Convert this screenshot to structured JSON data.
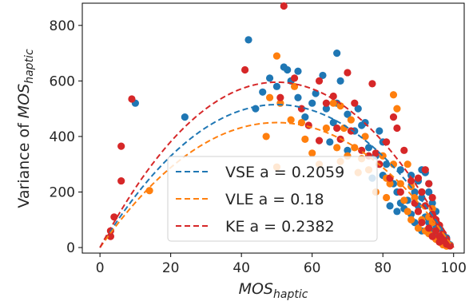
{
  "chart_data": {
    "type": "scatter",
    "xlabel": {
      "base": "MOS",
      "sub": "haptic"
    },
    "ylabel": {
      "prefix": "Variance of ",
      "base": "MOS",
      "sub": "haptic"
    },
    "xlim": [
      -5,
      103
    ],
    "ylim": [
      -20,
      880
    ],
    "xticks": [
      0,
      20,
      40,
      60,
      80,
      100
    ],
    "yticks": [
      0,
      200,
      400,
      600,
      800
    ],
    "grid": false,
    "legend_position": "lower-center",
    "series": [
      {
        "name": "VSE",
        "legend_label": "VSE a = 0.2059",
        "a": 0.2059,
        "color": "#1f77b4",
        "points": [
          [
            10,
            520
          ],
          [
            24,
            470
          ],
          [
            42,
            748
          ],
          [
            44,
            500
          ],
          [
            46,
            560
          ],
          [
            48,
            610
          ],
          [
            50,
            580
          ],
          [
            52,
            650
          ],
          [
            53,
            640
          ],
          [
            54,
            600
          ],
          [
            56,
            540
          ],
          [
            56,
            635
          ],
          [
            58,
            470
          ],
          [
            60,
            520
          ],
          [
            61,
            555
          ],
          [
            63,
            620
          ],
          [
            64,
            500
          ],
          [
            65,
            380
          ],
          [
            66,
            450
          ],
          [
            67,
            700
          ],
          [
            67,
            520
          ],
          [
            68,
            600
          ],
          [
            70,
            480
          ],
          [
            70,
            350
          ],
          [
            72,
            420
          ],
          [
            73,
            500
          ],
          [
            74,
            440
          ],
          [
            75,
            450
          ],
          [
            76,
            360
          ],
          [
            77,
            250
          ],
          [
            78,
            330
          ],
          [
            79,
            420
          ],
          [
            80,
            380
          ],
          [
            80,
            260
          ],
          [
            81,
            300
          ],
          [
            82,
            150
          ],
          [
            83,
            230
          ],
          [
            84,
            200
          ],
          [
            84,
            130
          ],
          [
            85,
            280
          ],
          [
            85,
            160
          ],
          [
            86,
            140
          ],
          [
            87,
            170
          ],
          [
            88,
            120
          ],
          [
            88,
            260
          ],
          [
            89,
            200
          ],
          [
            89,
            90
          ],
          [
            90,
            240
          ],
          [
            90,
            150
          ],
          [
            91,
            280
          ],
          [
            91,
            180
          ],
          [
            91,
            60
          ],
          [
            92,
            270
          ],
          [
            92,
            110
          ],
          [
            93,
            200
          ],
          [
            93,
            230
          ],
          [
            93,
            90
          ],
          [
            94,
            160
          ],
          [
            94,
            60
          ],
          [
            95,
            80
          ],
          [
            95,
            40
          ],
          [
            95,
            130
          ],
          [
            96,
            30
          ],
          [
            96,
            70
          ],
          [
            97,
            20
          ],
          [
            97,
            50
          ],
          [
            98,
            15
          ],
          [
            98,
            35
          ],
          [
            99,
            8
          ],
          [
            99,
            10
          ]
        ]
      },
      {
        "name": "VLE",
        "legend_label": "VLE a = 0.18",
        "a": 0.18,
        "color": "#ff7f0e",
        "points": [
          [
            14,
            205
          ],
          [
            47,
            400
          ],
          [
            48,
            540
          ],
          [
            50,
            690
          ],
          [
            50,
            290
          ],
          [
            51,
            520
          ],
          [
            54,
            460
          ],
          [
            55,
            580
          ],
          [
            57,
            450
          ],
          [
            58,
            390
          ],
          [
            60,
            340
          ],
          [
            62,
            300
          ],
          [
            64,
            430
          ],
          [
            66,
            520
          ],
          [
            67,
            360
          ],
          [
            68,
            510
          ],
          [
            68,
            310
          ],
          [
            69,
            430
          ],
          [
            70,
            330
          ],
          [
            71,
            460
          ],
          [
            72,
            360
          ],
          [
            73,
            270
          ],
          [
            74,
            320
          ],
          [
            75,
            400
          ],
          [
            76,
            280
          ],
          [
            78,
            200
          ],
          [
            79,
            300
          ],
          [
            80,
            330
          ],
          [
            81,
            250
          ],
          [
            81,
            180
          ],
          [
            82,
            230
          ],
          [
            83,
            550
          ],
          [
            83,
            300
          ],
          [
            84,
            500
          ],
          [
            85,
            230
          ],
          [
            86,
            170
          ],
          [
            87,
            300
          ],
          [
            87,
            130
          ],
          [
            88,
            220
          ],
          [
            88,
            100
          ],
          [
            89,
            180
          ],
          [
            90,
            130
          ],
          [
            90,
            70
          ],
          [
            91,
            200
          ],
          [
            91,
            100
          ],
          [
            92,
            150
          ],
          [
            92,
            60
          ],
          [
            93,
            110
          ],
          [
            93,
            50
          ],
          [
            94,
            90
          ],
          [
            94,
            140
          ],
          [
            95,
            60
          ],
          [
            95,
            30
          ],
          [
            96,
            80
          ],
          [
            96,
            20
          ],
          [
            97,
            40
          ],
          [
            97,
            10
          ],
          [
            98,
            25
          ],
          [
            98,
            5
          ],
          [
            99,
            8
          ]
        ]
      },
      {
        "name": "KE",
        "legend_label": "KE a = 0.2382",
        "a": 0.2382,
        "color": "#d62728",
        "points": [
          [
            3,
            60
          ],
          [
            3,
            40
          ],
          [
            4,
            110
          ],
          [
            6,
            365
          ],
          [
            6,
            240
          ],
          [
            9,
            535
          ],
          [
            41,
            640
          ],
          [
            51,
            540
          ],
          [
            52,
            870
          ],
          [
            55,
            610
          ],
          [
            57,
            500
          ],
          [
            59,
            440
          ],
          [
            62,
            385
          ],
          [
            62,
            600
          ],
          [
            64,
            520
          ],
          [
            66,
            545
          ],
          [
            67,
            430
          ],
          [
            68,
            390
          ],
          [
            70,
            630
          ],
          [
            71,
            420
          ],
          [
            72,
            520
          ],
          [
            74,
            350
          ],
          [
            76,
            330
          ],
          [
            77,
            590
          ],
          [
            78,
            340
          ],
          [
            79,
            300
          ],
          [
            81,
            380
          ],
          [
            82,
            250
          ],
          [
            83,
            470
          ],
          [
            84,
            430
          ],
          [
            85,
            200
          ],
          [
            86,
            350
          ],
          [
            88,
            240
          ],
          [
            89,
            160
          ],
          [
            90,
            130
          ],
          [
            90,
            250
          ],
          [
            91,
            200
          ],
          [
            91,
            90
          ],
          [
            92,
            280
          ],
          [
            92,
            150
          ],
          [
            93,
            230
          ],
          [
            93,
            70
          ],
          [
            94,
            180
          ],
          [
            94,
            120
          ],
          [
            94,
            40
          ],
          [
            95,
            100
          ],
          [
            95,
            60
          ],
          [
            96,
            80
          ],
          [
            96,
            40
          ],
          [
            96,
            20
          ],
          [
            97,
            50
          ],
          [
            97,
            25
          ],
          [
            98,
            30
          ],
          [
            98,
            12
          ],
          [
            99,
            6
          ]
        ]
      }
    ]
  }
}
